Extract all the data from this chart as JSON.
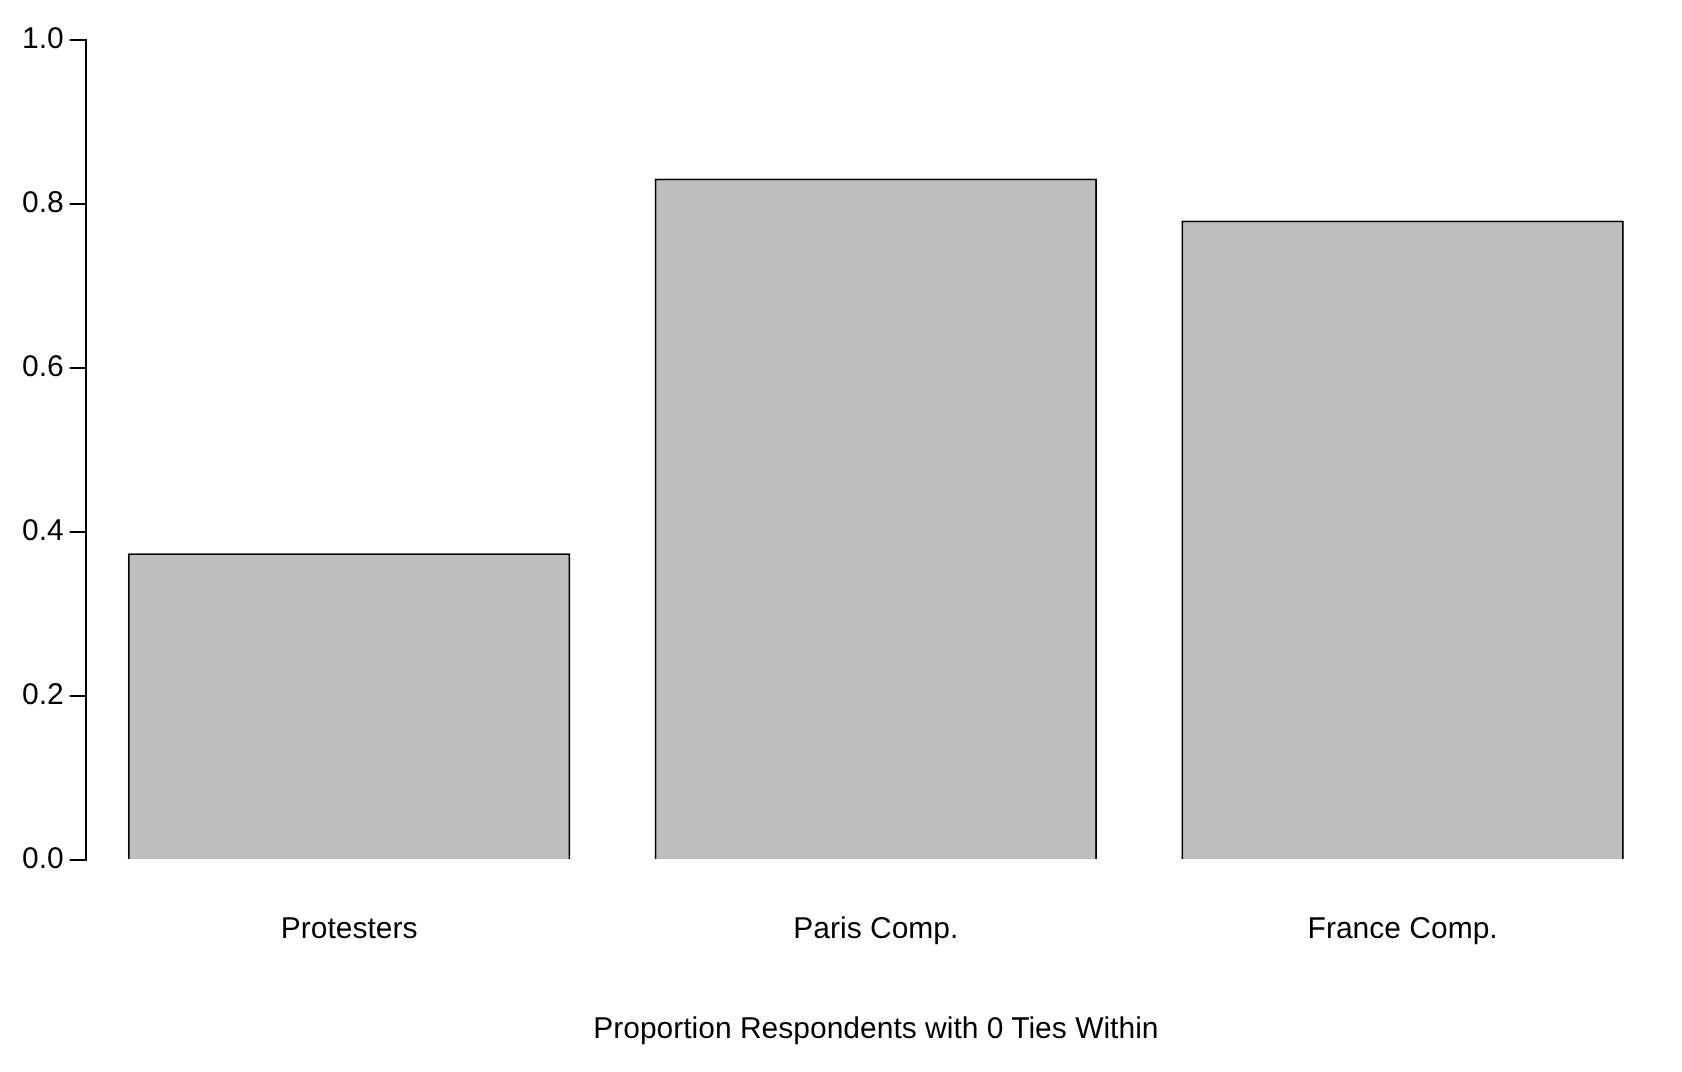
{
  "chart_data": {
    "type": "bar",
    "xlabel": "Proportion Respondents with 0 Ties Within",
    "categories": [
      "Protesters",
      "Paris Comp.",
      "France Comp."
    ],
    "values": [
      0.374,
      0.831,
      0.78
    ],
    "color": "#bebebe",
    "ylim": [
      0,
      1
    ],
    "yticks": [
      {
        "value": 0,
        "label": "0.0"
      },
      0.2,
      0.4,
      0.6,
      0.8,
      {
        "value": 1,
        "label": "1.0"
      }
    ],
    "grid": false,
    "legend": false
  }
}
